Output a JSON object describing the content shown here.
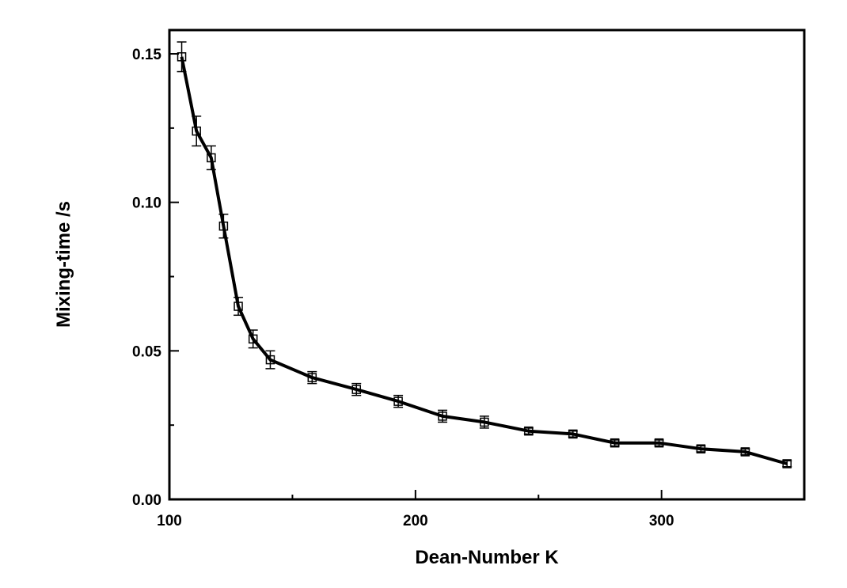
{
  "chart_data": {
    "type": "line",
    "title": "",
    "xlabel": "Dean-Number K",
    "ylabel": "Mixing-time /s",
    "xlim": [
      100,
      358
    ],
    "ylim": [
      0,
      0.158
    ],
    "x_ticks": [
      100,
      200,
      300
    ],
    "x_tick_labels": [
      "100",
      "200",
      "300"
    ],
    "x_minor_ticks": [
      150,
      250
    ],
    "y_ticks": [
      0.0,
      0.05,
      0.1,
      0.15
    ],
    "y_tick_labels": [
      "0.00",
      "0.05",
      "0.10",
      "0.15"
    ],
    "y_minor_ticks": [
      0.025,
      0.075,
      0.125
    ],
    "grid": false,
    "legend": "none",
    "line_color": "#000000",
    "series": [
      {
        "x": [
          105,
          111,
          117,
          122,
          128,
          134,
          141,
          158,
          176,
          193,
          211,
          228,
          246,
          264,
          281,
          299,
          316,
          334,
          351
        ],
        "y": [
          0.149,
          0.124,
          0.115,
          0.092,
          0.065,
          0.054,
          0.047,
          0.041,
          0.037,
          0.033,
          0.028,
          0.026,
          0.023,
          0.022,
          0.019,
          0.019,
          0.017,
          0.016,
          0.012
        ],
        "y_error": [
          0.005,
          0.005,
          0.004,
          0.004,
          0.003,
          0.003,
          0.003,
          0.002,
          0.002,
          0.002,
          0.002,
          0.002,
          0.001,
          0.001,
          0.001,
          0.001,
          0.001,
          0.001,
          0.001
        ]
      }
    ]
  }
}
